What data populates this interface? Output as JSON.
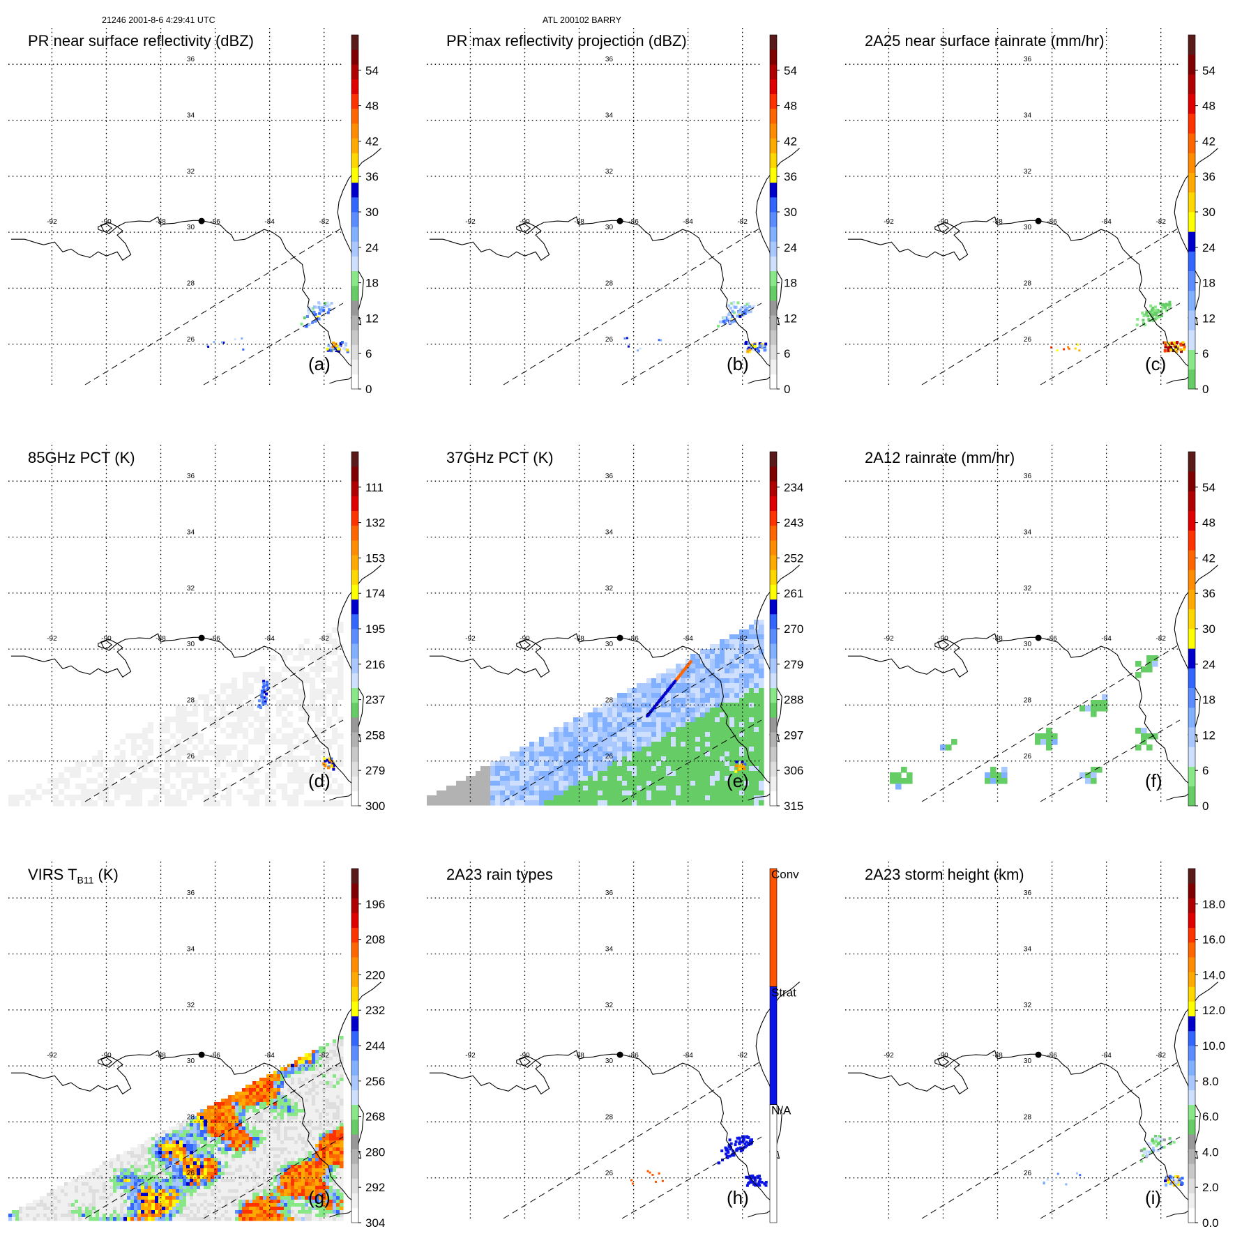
{
  "header": {
    "orbit_time": "21246 2001-8-6 4:29:41 UTC",
    "storm": "ATL 200102 BARRY"
  },
  "map": {
    "lon_ticks": [
      "-92",
      "-90",
      "-88",
      "-86",
      "-84",
      "-82"
    ],
    "lat_ticks": [
      "36",
      "34",
      "32",
      "30",
      "28",
      "26"
    ]
  },
  "colors": {
    "pr_ramp": [
      "#ffffff",
      "#f0f0f0",
      "#dedede",
      "#c8c8c8",
      "#b2b2b2",
      "#989898",
      "#66cc66",
      "#88e888",
      "#cfe0ff",
      "#a9c8ff",
      "#80b0ff",
      "#5a8cff",
      "#3366ff",
      "#0000cc",
      "#ffff00",
      "#ffd700",
      "#ffaa00",
      "#ff8c00",
      "#ff6600",
      "#ff3300",
      "#e00000",
      "#b00000",
      "#800000",
      "#5a1a1a"
    ],
    "rain_ramp": [
      "#66cc66",
      "#88e888",
      "#cfe0ff",
      "#a9c8ff",
      "#80b0ff",
      "#5a8cff",
      "#3366ff",
      "#0000cc",
      "#ffff00",
      "#ffd700",
      "#ffaa00",
      "#ff8c00",
      "#ff6600",
      "#ff3300",
      "#e00000",
      "#b00000",
      "#800000",
      "#5a1a1a"
    ],
    "type_ramp": [
      "#ffffff",
      "#0a14e6",
      "#ff5500"
    ],
    "coast": "#000000",
    "grid": "#000000",
    "swath": "#000000"
  },
  "chart_data": [
    {
      "type": "heatmap",
      "id": "a",
      "title": "PR near surface reflectivity (dBZ)",
      "label": "(a)",
      "cbar_ticks": [
        "0",
        "6",
        "12",
        "18",
        "24",
        "30",
        "36",
        "42",
        "48",
        "54"
      ],
      "cbar_range": [
        0,
        60
      ],
      "ramp": "pr_ramp",
      "field": "pr_small"
    },
    {
      "type": "heatmap",
      "id": "b",
      "title": "PR max reflectivity projection (dBZ)",
      "label": "(b)",
      "cbar_ticks": [
        "0",
        "6",
        "12",
        "18",
        "24",
        "30",
        "36",
        "42",
        "48",
        "54"
      ],
      "cbar_range": [
        0,
        60
      ],
      "ramp": "pr_ramp",
      "field": "pr_small"
    },
    {
      "type": "heatmap",
      "id": "c",
      "title": "2A25 near surface rainrate (mm/hr)",
      "label": "(c)",
      "cbar_ticks": [
        "0",
        "6",
        "12",
        "18",
        "24",
        "30",
        "36",
        "42",
        "48",
        "54"
      ],
      "cbar_range": [
        0,
        60
      ],
      "ramp": "rain_ramp",
      "field": "rain_small"
    },
    {
      "type": "heatmap",
      "id": "d",
      "title": "85GHz PCT (K)",
      "label": "(d)",
      "cbar_ticks": [
        "300",
        "279",
        "258",
        "237",
        "216",
        "195",
        "174",
        "153",
        "132",
        "111"
      ],
      "cbar_range": [
        300,
        90
      ],
      "ramp": "pr_ramp",
      "field": "pct85"
    },
    {
      "type": "heatmap",
      "id": "e",
      "title": "37GHz PCT (K)",
      "label": "(e)",
      "cbar_ticks": [
        "315",
        "306",
        "297",
        "288",
        "279",
        "270",
        "261",
        "252",
        "243",
        "234"
      ],
      "cbar_range": [
        315,
        225
      ],
      "ramp": "pr_ramp",
      "field": "pct37"
    },
    {
      "type": "heatmap",
      "id": "f",
      "title": "2A12 rainrate (mm/hr)",
      "label": "(f)",
      "cbar_ticks": [
        "0",
        "6",
        "12",
        "18",
        "24",
        "30",
        "36",
        "42",
        "48",
        "54"
      ],
      "cbar_range": [
        0,
        60
      ],
      "ramp": "rain_ramp",
      "field": "tmi_rain"
    },
    {
      "type": "heatmap",
      "id": "g",
      "title_main": "VIRS T",
      "title_sub": "B11",
      "title_unit": " (K)",
      "label": "(g)",
      "cbar_ticks": [
        "304",
        "292",
        "280",
        "268",
        "256",
        "244",
        "232",
        "220",
        "208",
        "196"
      ],
      "cbar_range": [
        304,
        184
      ],
      "ramp": "pr_ramp",
      "field": "virs"
    },
    {
      "type": "heatmap",
      "id": "h",
      "title": "2A23 rain types",
      "label": "(h)",
      "cbar_ticks": [
        "N/A",
        "Strat",
        "Conv"
      ],
      "ramp": "type_ramp",
      "field": "types"
    },
    {
      "type": "heatmap",
      "id": "i",
      "title": "2A23 storm height (km)",
      "label": "(i)",
      "cbar_ticks": [
        "0.0",
        "2.0",
        "4.0",
        "6.0",
        "8.0",
        "10.0",
        "12.0",
        "14.0",
        "16.0",
        "18.0"
      ],
      "cbar_range": [
        0,
        20
      ],
      "ramp": "pr_ramp",
      "field": "height"
    }
  ]
}
